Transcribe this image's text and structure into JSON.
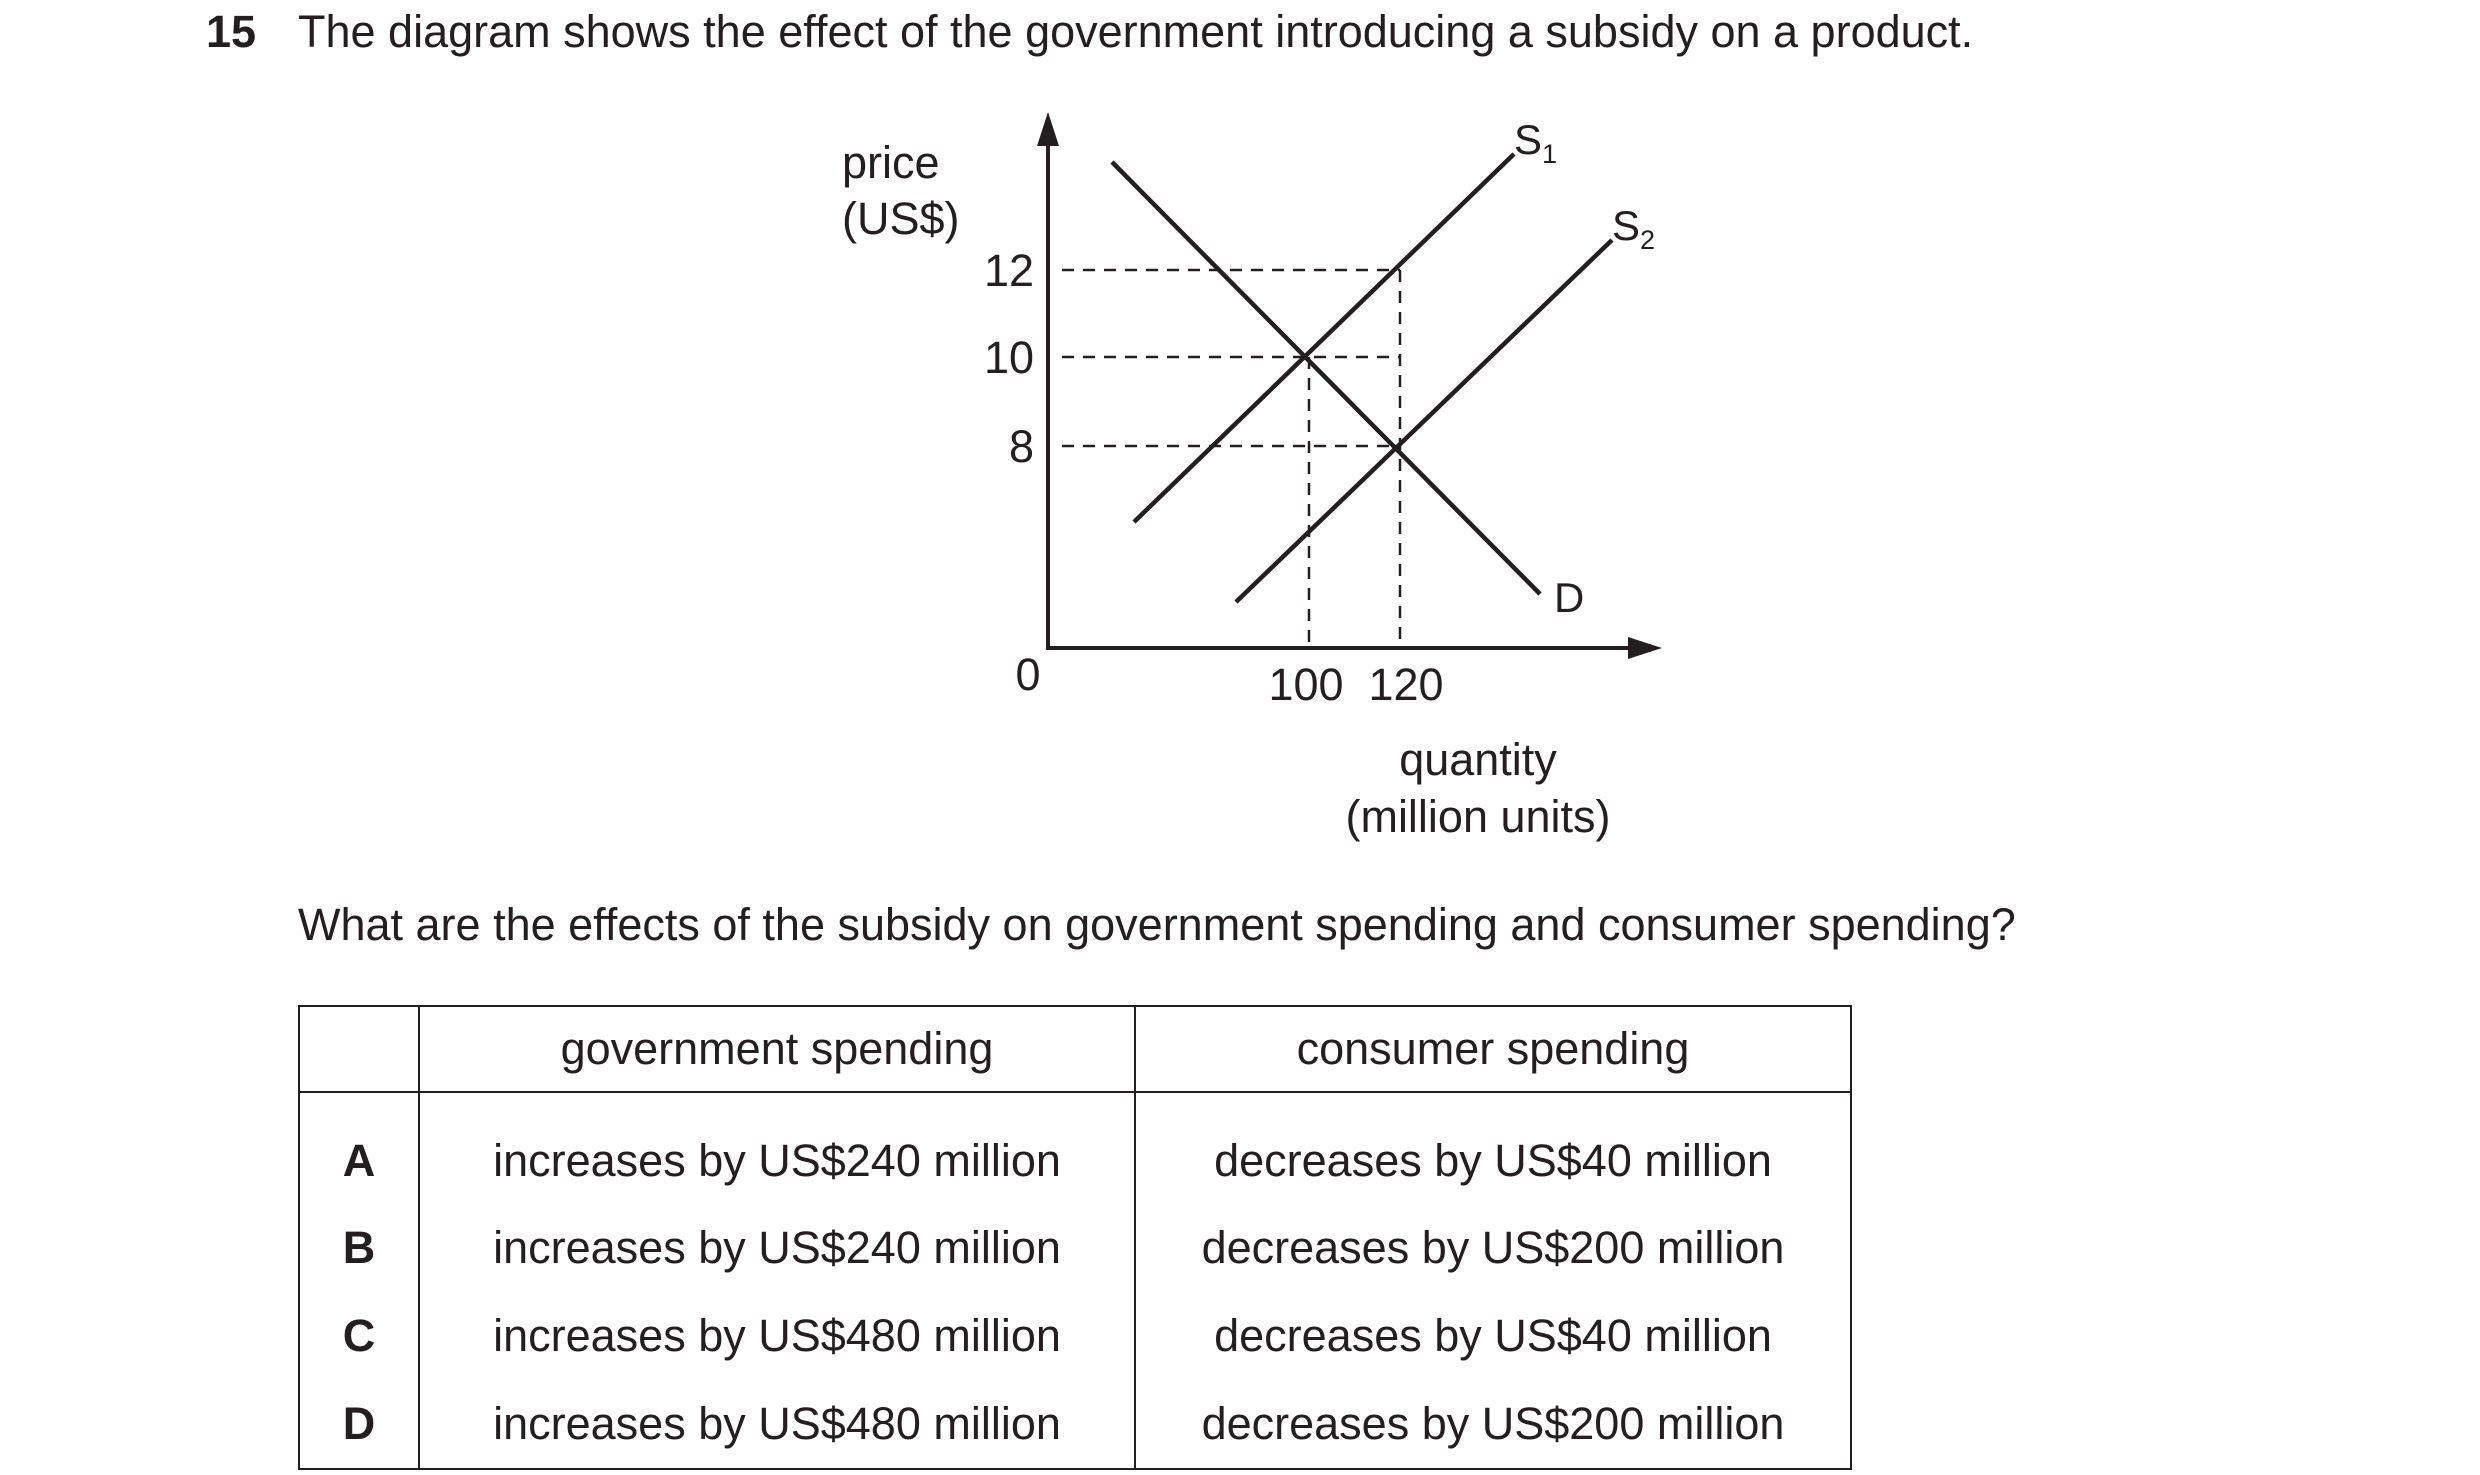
{
  "question": {
    "number": "15",
    "stem": "The diagram shows the effect of the government introducing a subsidy on a product.",
    "prompt": "What are the effects of the subsidy on government spending and consumer spending?"
  },
  "diagram": {
    "y_axis_label_line1": "price",
    "y_axis_label_line2": "(US$)",
    "x_axis_label_line1": "quantity",
    "x_axis_label_line2": "(million units)",
    "origin_label": "0",
    "y_ticks": [
      "12",
      "10",
      "8"
    ],
    "x_ticks": [
      "100",
      "120"
    ],
    "curves": {
      "supply_original": "S",
      "supply_original_sub": "1",
      "supply_new": "S",
      "supply_new_sub": "2",
      "demand": "D"
    }
  },
  "chart_data": {
    "type": "line",
    "xlabel": "quantity (million units)",
    "ylabel": "price (US$)",
    "x_ticks": [
      100,
      120
    ],
    "y_ticks": [
      8,
      10,
      12
    ],
    "series": [
      {
        "name": "S1",
        "points": [
          {
            "x": 100,
            "y": 10
          },
          {
            "x": 120,
            "y": 12
          }
        ]
      },
      {
        "name": "S2",
        "points": [
          {
            "x": 120,
            "y": 8
          }
        ]
      },
      {
        "name": "D",
        "points": [
          {
            "x": 100,
            "y": 10
          },
          {
            "x": 120,
            "y": 8
          }
        ]
      }
    ],
    "equilibria": [
      {
        "x": 100,
        "y": 10
      },
      {
        "x": 120,
        "y": 8
      }
    ],
    "dashed_guides": [
      {
        "y": 12,
        "to_x": 120
      },
      {
        "y": 10,
        "to_x": 120
      },
      {
        "y": 8,
        "to_x": 120
      },
      {
        "x": 100,
        "from_y": 10
      },
      {
        "x": 120,
        "from_y": 12
      }
    ]
  },
  "table": {
    "headers": [
      "",
      "government spending",
      "consumer spending"
    ],
    "rows": [
      {
        "letter": "A",
        "government": "increases by US$240 million",
        "consumer": "decreases by US$40 million"
      },
      {
        "letter": "B",
        "government": "increases by US$240 million",
        "consumer": "decreases by US$200 million"
      },
      {
        "letter": "C",
        "government": "increases by US$480 million",
        "consumer": "decreases by US$40 million"
      },
      {
        "letter": "D",
        "government": "increases by US$480 million",
        "consumer": "decreases by US$200 million"
      }
    ]
  }
}
